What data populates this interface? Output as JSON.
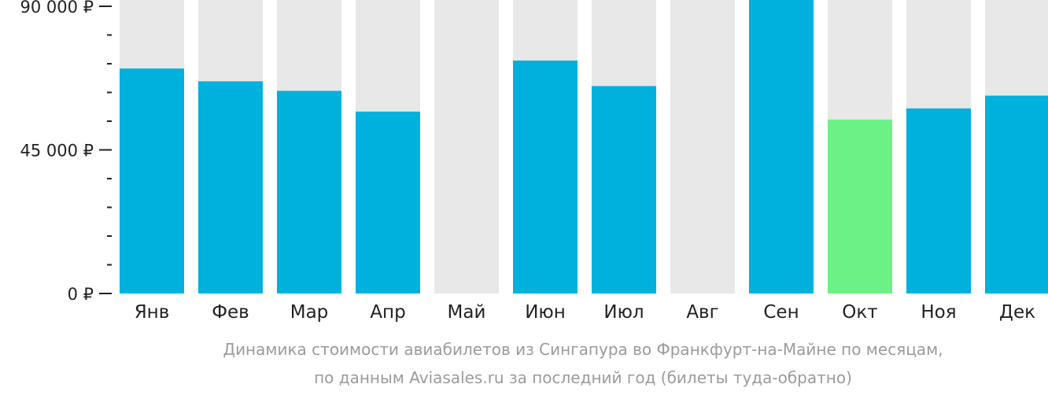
{
  "chart_data": {
    "type": "bar",
    "categories": [
      "Янв",
      "Фев",
      "Мар",
      "Апр",
      "Май",
      "Июн",
      "Июл",
      "Авг",
      "Сен",
      "Окт",
      "Ноя",
      "Дек"
    ],
    "values": [
      70500,
      66500,
      63500,
      57000,
      null,
      73000,
      65000,
      null,
      94000,
      54500,
      58000,
      62000
    ],
    "ylim": [
      0,
      90000
    ],
    "yticks": [
      {
        "value": 0,
        "label": "0 ₽"
      },
      {
        "value": 45000,
        "label": "45 000 ₽"
      },
      {
        "value": 90000,
        "label": "90 000 ₽"
      }
    ],
    "minor_tick_step": 9000,
    "highlight_index": 9,
    "title": "",
    "xlabel": "",
    "ylabel": "",
    "grid": false,
    "legend": "none",
    "colors": {
      "bar": "#00b0dd",
      "highlight": "#6cf185",
      "background_bar": "#e8e8e8",
      "axis": "#222222"
    }
  },
  "caption": {
    "line1": "Динамика стоимости авиабилетов из Сингапура во Франкфурт-на-Майне по месяцам,",
    "line2": "по данным Aviasales.ru за последний год (билеты туда-обратно)"
  }
}
